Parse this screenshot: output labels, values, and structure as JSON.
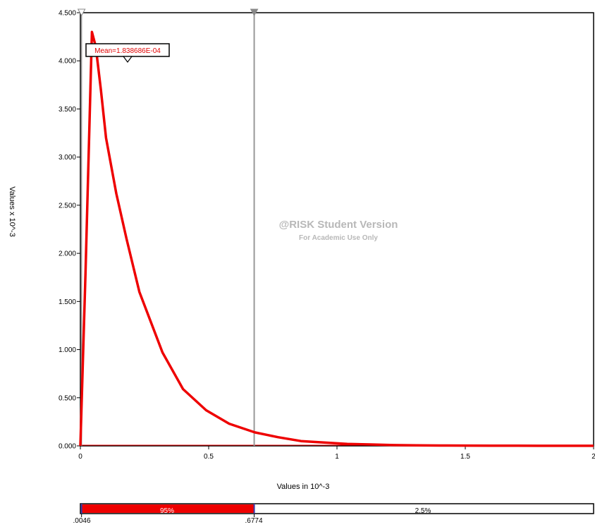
{
  "chart_data": {
    "type": "line",
    "xlabel": "Values in 10^-3",
    "ylabel": "Values x 10^-3",
    "xlim": [
      0,
      2
    ],
    "ylim": [
      0,
      4.5
    ],
    "x_ticks": [
      "0",
      "0.5",
      "1",
      "1.5",
      "2"
    ],
    "y_ticks": [
      "0.000",
      "0.500",
      "1.000",
      "1.500",
      "2.000",
      "2.500",
      "3.000",
      "3.500",
      "4.000",
      "4.500"
    ],
    "series": [
      {
        "color": "#ee0000",
        "x": [
          0,
          0.02,
          0.045,
          0.06,
          0.08,
          0.1,
          0.14,
          0.18,
          0.23,
          0.32,
          0.4,
          0.49,
          0.58,
          0.68,
          0.77,
          0.86,
          0.95,
          1.04,
          1.13,
          1.22,
          1.31,
          1.4,
          1.5,
          1.6,
          1.7,
          1.8,
          1.9,
          2.0
        ],
        "y": [
          0.0,
          1.8,
          4.3,
          4.15,
          3.7,
          3.2,
          2.62,
          2.15,
          1.6,
          0.97,
          0.59,
          0.37,
          0.23,
          0.14,
          0.09,
          0.05,
          0.035,
          0.02,
          0.015,
          0.008,
          0.005,
          0.004,
          0.003,
          0.002,
          0.0015,
          0.001,
          0.001,
          0.001
        ]
      }
    ],
    "mean_label": "Mean=1.838686E-04",
    "mean_value": 0.1838686,
    "marker_left": 0.0046,
    "marker_right": 0.6774,
    "band": {
      "left_label": ".0046",
      "right_label": ".6774",
      "segments": [
        {
          "label": "",
          "fraction": 0.0,
          "color": "#ffffff"
        },
        {
          "label": "95%",
          "fraction": 0.95,
          "color": "#ee0000"
        },
        {
          "label": "2.5%",
          "fraction": 0.025,
          "color": "#ffffff"
        }
      ]
    },
    "watermark": {
      "title": "@RISK Student Version",
      "subtitle": "For Academic Use Only"
    },
    "grid": false
  }
}
